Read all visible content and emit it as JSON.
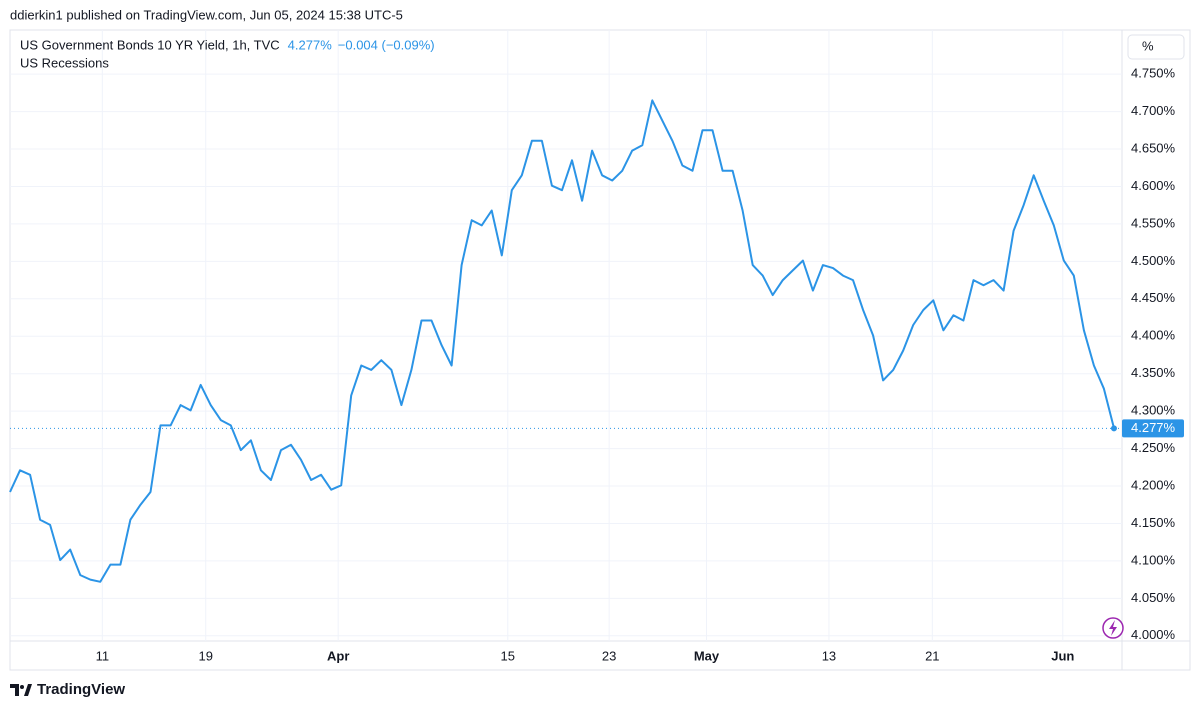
{
  "header": "ddierkin1 published on TradingView.com, Jun 05, 2024 15:38 UTC-5",
  "footer": "TradingView",
  "chart_data": {
    "type": "line",
    "title": "US Government Bonds 10 YR Yield, 1h, TVC",
    "last_price": {
      "value": 4.277,
      "label": "4.277%"
    },
    "change": "−0.004 (−0.09%)",
    "overlay": "US Recessions",
    "y_unit": "%",
    "color": "#2b94e6",
    "grid": true,
    "xlim": [
      0,
      110.8
    ],
    "ylim": [
      3.993,
      4.809
    ],
    "xticks": [
      {
        "value": 9.2,
        "label": "11"
      },
      {
        "value": 19.5,
        "label": "19"
      },
      {
        "value": 32.7,
        "label": "Apr"
      },
      {
        "value": 49.6,
        "label": "15"
      },
      {
        "value": 59.7,
        "label": "23"
      },
      {
        "value": 69.4,
        "label": "May"
      },
      {
        "value": 81.6,
        "label": "13"
      },
      {
        "value": 91.9,
        "label": "21"
      },
      {
        "value": 104.9,
        "label": "Jun"
      }
    ],
    "yticks": [
      {
        "value": 4.0,
        "label": "4.000%"
      },
      {
        "value": 4.05,
        "label": "4.050%"
      },
      {
        "value": 4.1,
        "label": "4.100%"
      },
      {
        "value": 4.15,
        "label": "4.150%"
      },
      {
        "value": 4.2,
        "label": "4.200%"
      },
      {
        "value": 4.25,
        "label": "4.250%"
      },
      {
        "value": 4.3,
        "label": "4.300%"
      },
      {
        "value": 4.35,
        "label": "4.350%"
      },
      {
        "value": 4.4,
        "label": "4.400%"
      },
      {
        "value": 4.45,
        "label": "4.450%"
      },
      {
        "value": 4.5,
        "label": "4.500%"
      },
      {
        "value": 4.55,
        "label": "4.550%"
      },
      {
        "value": 4.6,
        "label": "4.600%"
      },
      {
        "value": 4.65,
        "label": "4.650%"
      },
      {
        "value": 4.7,
        "label": "4.700%"
      },
      {
        "value": 4.75,
        "label": "4.750%"
      }
    ],
    "values": [
      4.192,
      4.221,
      4.215,
      4.155,
      4.148,
      4.101,
      4.115,
      4.081,
      4.075,
      4.072,
      4.095,
      4.095,
      4.155,
      4.175,
      4.192,
      4.281,
      4.281,
      4.308,
      4.301,
      4.335,
      4.308,
      4.288,
      4.281,
      4.248,
      4.261,
      4.221,
      4.208,
      4.248,
      4.255,
      4.235,
      4.208,
      4.215,
      4.195,
      4.201,
      4.321,
      4.361,
      4.355,
      4.368,
      4.355,
      4.308,
      4.355,
      4.421,
      4.421,
      4.388,
      4.361,
      4.495,
      4.555,
      4.548,
      4.568,
      4.508,
      4.595,
      4.615,
      4.661,
      4.661,
      4.601,
      4.595,
      4.635,
      4.581,
      4.648,
      4.615,
      4.608,
      4.621,
      4.648,
      4.655,
      4.715,
      4.688,
      4.661,
      4.628,
      4.621,
      4.675,
      4.675,
      4.621,
      4.621,
      4.568,
      4.495,
      4.481,
      4.455,
      4.475,
      4.488,
      4.501,
      4.461,
      4.495,
      4.491,
      4.481,
      4.475,
      4.435,
      4.401,
      4.341,
      4.355,
      4.381,
      4.415,
      4.435,
      4.448,
      4.408,
      4.428,
      4.421,
      4.475,
      4.468,
      4.475,
      4.461,
      4.541,
      4.575,
      4.615,
      4.581,
      4.548,
      4.501,
      4.481,
      4.408,
      4.361,
      4.33,
      4.277
    ]
  }
}
